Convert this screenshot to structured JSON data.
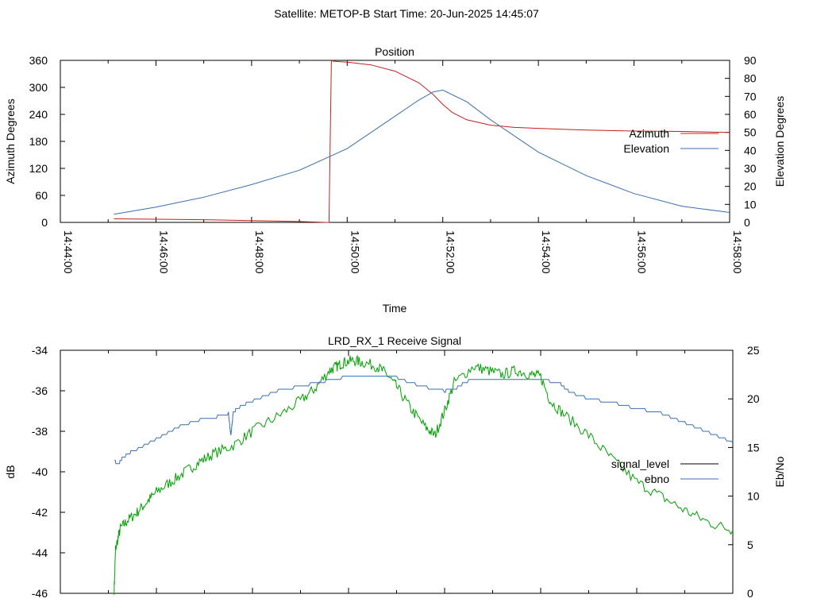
{
  "figure": {
    "title": "Satellite: METOP-B    Start Time: 20-Jun-2025 14:45:07"
  },
  "chart_data": [
    {
      "type": "line",
      "title": "Position",
      "xlabel": "Time",
      "ylabel": "Azimuth Degrees",
      "y2label": "Elevation Degrees",
      "x_ticks": [
        "14:44:00",
        "14:46:00",
        "14:48:00",
        "14:50:00",
        "14:52:00",
        "14:54:00",
        "14:56:00",
        "14:58:00"
      ],
      "x_tick_minutes": [
        0,
        2,
        4,
        6,
        8,
        10,
        12,
        14
      ],
      "x_range_minutes": [
        0,
        14
      ],
      "ylim": [
        0,
        360
      ],
      "y_ticks": [
        "0",
        "60",
        "120",
        "180",
        "240",
        "300",
        "360"
      ],
      "y2lim": [
        0,
        90
      ],
      "y2_ticks": [
        "0",
        "10",
        "20",
        "30",
        "40",
        "50",
        "60",
        "70",
        "80",
        "90"
      ],
      "legend_position": "right",
      "grid": false,
      "series": [
        {
          "name": "Azimuth",
          "axis": "y1",
          "color": "#c02020",
          "x": [
            1.12,
            2.0,
            3.0,
            4.0,
            5.0,
            5.55,
            5.62,
            5.67,
            5.72,
            6.0,
            6.5,
            7.0,
            7.5,
            7.8,
            8.0,
            8.2,
            8.5,
            9.0,
            9.5,
            10.0,
            10.5,
            11.0,
            12.0,
            13.0,
            14.0
          ],
          "values": [
            8,
            7,
            6,
            4,
            2,
            0,
            0,
            360,
            358,
            356,
            350,
            336,
            310,
            284,
            262,
            244,
            228,
            216,
            211,
            209,
            207,
            205,
            203,
            202,
            200
          ]
        },
        {
          "name": "Elevation",
          "axis": "y2",
          "color": "#3a6fb0",
          "x": [
            1.12,
            2.0,
            3.0,
            4.0,
            5.0,
            6.0,
            7.0,
            7.5,
            7.8,
            8.0,
            8.5,
            9.0,
            10.0,
            11.0,
            12.0,
            13.0,
            14.0
          ],
          "values": [
            4.5,
            8.5,
            14,
            21,
            29,
            41,
            59,
            68,
            72.5,
            73.5,
            67,
            57,
            39,
            26,
            16,
            9,
            5.5
          ]
        }
      ]
    },
    {
      "type": "line",
      "title": "LRD_RX_1 Receive Signal",
      "ylabel": "dB",
      "y2label": "Eb/No",
      "x_range_minutes": [
        0,
        14
      ],
      "ylim": [
        -46,
        -34
      ],
      "y_ticks": [
        "-34",
        "-36",
        "-38",
        "-40",
        "-42",
        "-44",
        "-46"
      ],
      "y2lim": [
        0,
        25
      ],
      "y2_ticks": [
        "0",
        "5",
        "10",
        "15",
        "20",
        "25"
      ],
      "legend_position": "right",
      "grid": false,
      "series": [
        {
          "name": "signal_level",
          "axis": "y1",
          "legend_color": "#000000",
          "color": "#00a000",
          "x": [
            1.12,
            1.15,
            1.25,
            1.4,
            1.6,
            1.8,
            2.0,
            2.3,
            2.6,
            2.9,
            3.2,
            3.6,
            4.0,
            4.5,
            5.0,
            5.3,
            5.6,
            5.75,
            5.9,
            6.1,
            6.3,
            6.6,
            6.8,
            7.0,
            7.3,
            7.6,
            7.8,
            8.0,
            8.2,
            8.6,
            8.9,
            9.2,
            9.5,
            9.8,
            10.0,
            10.2,
            10.5,
            11.0,
            11.5,
            12.0,
            12.5,
            13.0,
            13.5,
            14.0
          ],
          "values": [
            -45.8,
            -43.8,
            -42.8,
            -42.4,
            -42.0,
            -41.5,
            -41.0,
            -40.5,
            -40.0,
            -39.5,
            -39.1,
            -38.7,
            -38.0,
            -37.3,
            -36.5,
            -35.9,
            -35.0,
            -34.8,
            -34.6,
            -34.5,
            -34.6,
            -34.8,
            -35.2,
            -35.8,
            -36.9,
            -37.8,
            -38.2,
            -37.0,
            -35.6,
            -34.8,
            -35.0,
            -35.2,
            -35.0,
            -35.2,
            -35.3,
            -36.5,
            -37.2,
            -38.2,
            -39.4,
            -40.5,
            -41.2,
            -41.9,
            -42.5,
            -42.9
          ]
        },
        {
          "name": "ebno",
          "axis": "y2",
          "color": "#3a6fb0",
          "x": [
            1.12,
            1.2,
            1.3,
            1.5,
            2.0,
            2.5,
            3.0,
            3.3,
            3.5,
            3.55,
            3.6,
            3.7,
            4.0,
            4.5,
            5.0,
            5.5,
            6.0,
            6.5,
            7.0,
            7.5,
            8.0,
            8.2,
            8.5,
            9.0,
            10.0,
            10.4,
            10.6,
            11.0,
            11.5,
            12.0,
            12.5,
            13.0,
            13.5,
            14.0
          ],
          "values": [
            13.7,
            13.2,
            14.0,
            14.6,
            15.9,
            17.2,
            18.0,
            18.2,
            18.5,
            16.2,
            18.6,
            19.1,
            19.8,
            20.8,
            21.3,
            21.8,
            22.3,
            22.4,
            22.2,
            21.3,
            20.8,
            21.0,
            21.9,
            22.1,
            22.0,
            21.6,
            20.7,
            20.0,
            19.6,
            19.0,
            18.5,
            17.5,
            16.5,
            15.5
          ]
        }
      ]
    }
  ]
}
